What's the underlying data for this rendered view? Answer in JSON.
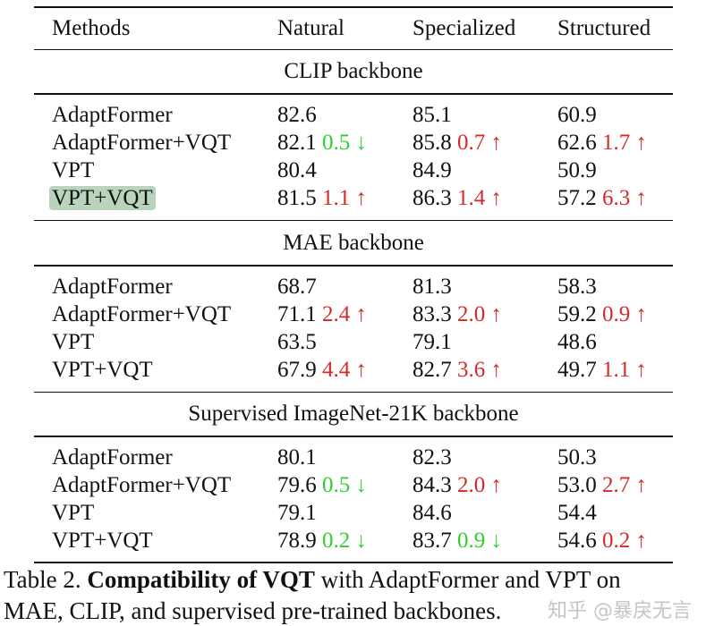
{
  "table": {
    "headers": [
      "Methods",
      "Natural",
      "Specialized",
      "Structured"
    ],
    "sections": [
      {
        "title": "CLIP backbone",
        "rows": [
          {
            "method": "AdaptFormer",
            "highlight": false,
            "cells": [
              {
                "v": "82.6"
              },
              {
                "v": "85.1"
              },
              {
                "v": "60.9"
              }
            ]
          },
          {
            "method": "AdaptFormer+VQT",
            "highlight": false,
            "cells": [
              {
                "v": "82.1",
                "d": "0.5",
                "dir": "down"
              },
              {
                "v": "85.8",
                "d": "0.7",
                "dir": "up"
              },
              {
                "v": "62.6",
                "d": "1.7",
                "dir": "up"
              }
            ]
          },
          {
            "method": "VPT",
            "highlight": false,
            "cells": [
              {
                "v": "80.4"
              },
              {
                "v": "84.9"
              },
              {
                "v": "50.9"
              }
            ]
          },
          {
            "method": "VPT+VQT",
            "highlight": true,
            "cells": [
              {
                "v": "81.5",
                "d": "1.1",
                "dir": "up"
              },
              {
                "v": "86.3",
                "d": "1.4",
                "dir": "up"
              },
              {
                "v": "57.2",
                "d": "6.3",
                "dir": "up"
              }
            ]
          }
        ]
      },
      {
        "title": "MAE backbone",
        "rows": [
          {
            "method": "AdaptFormer",
            "highlight": false,
            "cells": [
              {
                "v": "68.7"
              },
              {
                "v": "81.3"
              },
              {
                "v": "58.3"
              }
            ]
          },
          {
            "method": "AdaptFormer+VQT",
            "highlight": false,
            "cells": [
              {
                "v": "71.1",
                "d": "2.4",
                "dir": "up"
              },
              {
                "v": "83.3",
                "d": "2.0",
                "dir": "up"
              },
              {
                "v": "59.2",
                "d": "0.9",
                "dir": "up"
              }
            ]
          },
          {
            "method": "VPT",
            "highlight": false,
            "cells": [
              {
                "v": "63.5"
              },
              {
                "v": "79.1"
              },
              {
                "v": "48.6"
              }
            ]
          },
          {
            "method": "VPT+VQT",
            "highlight": false,
            "cells": [
              {
                "v": "67.9",
                "d": "4.4",
                "dir": "up"
              },
              {
                "v": "82.7",
                "d": "3.6",
                "dir": "up"
              },
              {
                "v": "49.7",
                "d": "1.1",
                "dir": "up"
              }
            ]
          }
        ]
      },
      {
        "title": "Supervised ImageNet-21K backbone",
        "rows": [
          {
            "method": "AdaptFormer",
            "highlight": false,
            "cells": [
              {
                "v": "80.1"
              },
              {
                "v": "82.3"
              },
              {
                "v": "50.3"
              }
            ]
          },
          {
            "method": "AdaptFormer+VQT",
            "highlight": false,
            "cells": [
              {
                "v": "79.6",
                "d": "0.5",
                "dir": "down"
              },
              {
                "v": "84.3",
                "d": "2.0",
                "dir": "up"
              },
              {
                "v": "53.0",
                "d": "2.7",
                "dir": "up"
              }
            ]
          },
          {
            "method": "VPT",
            "highlight": false,
            "cells": [
              {
                "v": "79.1"
              },
              {
                "v": "84.6"
              },
              {
                "v": "54.4"
              }
            ]
          },
          {
            "method": "VPT+VQT",
            "highlight": false,
            "cells": [
              {
                "v": "78.9",
                "d": "0.2",
                "dir": "down"
              },
              {
                "v": "83.7",
                "d": "0.9",
                "dir": "down"
              },
              {
                "v": "54.6",
                "d": "0.2",
                "dir": "up"
              }
            ]
          }
        ]
      }
    ],
    "arrows": {
      "up": "↑",
      "down": "↓"
    },
    "colors": {
      "up": "#d42a2a",
      "down": "#2ed02e",
      "highlight": "#b9d3bd"
    }
  },
  "caption": {
    "label": "Table 2.",
    "bold": "Compatibility of VQT",
    "line1_rest": " with AdaptFormer and VPT on",
    "line2": "MAE, CLIP, and supervised pre-trained backbones."
  },
  "watermark": "知乎 @暴戾无言"
}
